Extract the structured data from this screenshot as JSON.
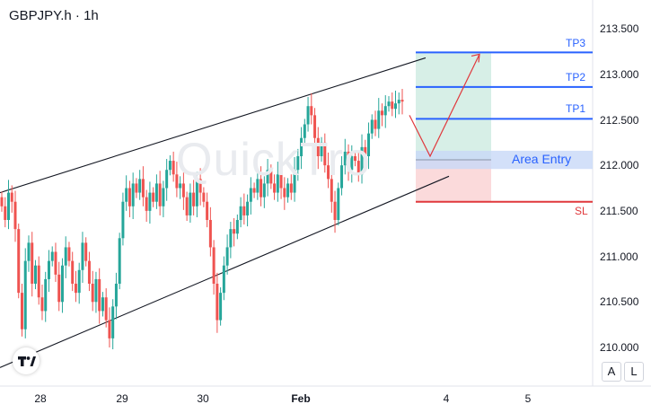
{
  "header": {
    "ticker": "GBPJPY.h · 1h"
  },
  "watermark": "QuickTro",
  "buttons": {
    "auto": "A",
    "log": "L"
  },
  "colors": {
    "up": "#26a69a",
    "down": "#ef5350",
    "tp": "#2962ff",
    "sl": "#e0383c",
    "profit_zone": "#d7efe7",
    "loss_zone": "#fbdadb",
    "entry_zone": "#c8d8f7"
  },
  "chart_data": {
    "type": "candlestick",
    "symbol": "GBPJPY.h",
    "timeframe": "1h",
    "x_ticks": [
      "28",
      "29",
      "30",
      "Feb",
      "4",
      "5"
    ],
    "y_ticks": [
      "213.500",
      "213.000",
      "212.500",
      "212.000",
      "211.500",
      "211.000",
      "210.500",
      "210.000"
    ],
    "ylim": [
      209.8,
      213.75
    ],
    "channel": {
      "upper": [
        {
          "x": "27 Jan",
          "y": 211.7
        },
        {
          "x": "3 Feb",
          "y": 213.18
        }
      ],
      "lower": [
        {
          "x": "27 Jan",
          "y": 209.78
        },
        {
          "x": "3 Feb",
          "y": 211.88
        }
      ]
    },
    "levels": [
      {
        "name": "TP3",
        "value": 213.24
      },
      {
        "name": "TP2",
        "value": 212.86
      },
      {
        "name": "TP1",
        "value": 212.51
      },
      {
        "name": "Area Entry",
        "value": 212.06,
        "range": [
          211.96,
          212.16
        ]
      },
      {
        "name": "SL",
        "value": 211.6
      }
    ],
    "projection": [
      212.55,
      212.1,
      213.22
    ],
    "candles_close_series": [
      211.55,
      211.4,
      211.7,
      211.6,
      211.3,
      210.6,
      210.2,
      210.95,
      211.15,
      210.7,
      210.9,
      210.55,
      210.4,
      210.75,
      210.95,
      211.05,
      210.8,
      210.5,
      210.9,
      211.1,
      210.95,
      210.7,
      210.6,
      210.85,
      211.15,
      210.95,
      210.7,
      210.5,
      210.75,
      210.4,
      210.55,
      210.3,
      210.1,
      210.45,
      210.7,
      211.2,
      211.6,
      211.75,
      211.55,
      211.8,
      211.7,
      211.85,
      211.65,
      211.5,
      211.7,
      211.6,
      211.8,
      211.55,
      211.75,
      211.95,
      212.05,
      211.9,
      211.75,
      211.8,
      211.65,
      211.45,
      211.7,
      211.55,
      211.85,
      211.7,
      211.6,
      211.4,
      211.1,
      210.7,
      210.3,
      210.6,
      210.9,
      211.1,
      211.3,
      211.25,
      211.4,
      211.55,
      211.45,
      211.6,
      211.75,
      211.7,
      211.85,
      211.65,
      211.8,
      211.95,
      211.8,
      211.7,
      211.9,
      211.75,
      211.65,
      211.8,
      211.7,
      211.95,
      212.1,
      212.3,
      212.45,
      212.65,
      212.55,
      212.3,
      212.1,
      212.25,
      212.0,
      211.85,
      211.6,
      211.4,
      211.75,
      212.0,
      212.15,
      211.95,
      212.1,
      212.05,
      211.9,
      212.2,
      212.1,
      212.35,
      212.5,
      212.4,
      212.6,
      212.55,
      212.65,
      212.7,
      212.62,
      212.68,
      212.72,
      212.7
    ]
  }
}
